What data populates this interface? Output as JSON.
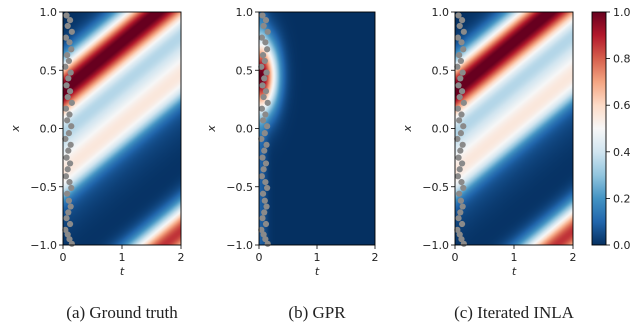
{
  "colors": {
    "colormap": [
      "#053061",
      "#2166ac",
      "#4393c3",
      "#92c5de",
      "#d1e5f0",
      "#f7f7f7",
      "#fddbc7",
      "#f4a582",
      "#d6604d",
      "#b2182b",
      "#67001f"
    ],
    "observation_marker": "#8a8a8a"
  },
  "chart_data": [
    {
      "type": "heatmap",
      "caption": "(a) Ground truth",
      "xlabel": "t",
      "ylabel": "x",
      "xlim": [
        0,
        2
      ],
      "ylim": [
        -1,
        1
      ],
      "xticks": [
        "0",
        "1",
        "2"
      ],
      "yticks": [
        "1.0",
        "0.5",
        "0.0",
        "−0.5",
        "−1.0"
      ],
      "field": "traveling-wave",
      "colormap": "RdBu_r"
    },
    {
      "type": "heatmap",
      "caption": "(b) GPR",
      "xlabel": "t",
      "ylabel": "x",
      "xlim": [
        0,
        2
      ],
      "ylim": [
        -1,
        1
      ],
      "xticks": [
        "0",
        "1",
        "2"
      ],
      "yticks": [
        "1.0",
        "0.5",
        "0.0",
        "−0.5",
        "−1.0"
      ],
      "field": "localized-blob",
      "colormap": "RdBu_r"
    },
    {
      "type": "heatmap",
      "caption": "(c) Iterated INLA",
      "xlabel": "t",
      "ylabel": "x",
      "xlim": [
        0,
        2
      ],
      "ylim": [
        -1,
        1
      ],
      "xticks": [
        "0",
        "1",
        "2"
      ],
      "yticks": [
        "1.0",
        "0.5",
        "0.0",
        "−0.5",
        "−1.0"
      ],
      "field": "traveling-wave",
      "colormap": "RdBu_r"
    }
  ],
  "colorbar": {
    "range": [
      0,
      1
    ],
    "ticks": [
      "1.0",
      "0.8",
      "0.6",
      "0.4",
      "0.2",
      "0.0"
    ]
  },
  "observations": {
    "t": [
      0.06,
      0.12,
      0.08,
      0.15,
      0.05,
      0.11,
      0.14,
      0.07,
      0.1,
      0.04,
      0.13,
      0.09,
      0.06,
      0.12,
      0.08,
      0.15,
      0.05,
      0.11,
      0.07,
      0.14,
      0.1,
      0.04,
      0.13,
      0.09,
      0.06,
      0.12,
      0.08,
      0.05,
      0.11,
      0.14,
      0.07,
      0.1,
      0.13,
      0.09,
      0.06,
      0.12,
      0.04,
      0.08,
      0.11,
      0.15
    ],
    "x": [
      0.97,
      0.93,
      0.88,
      0.83,
      0.78,
      0.74,
      0.68,
      0.63,
      0.58,
      0.53,
      0.48,
      0.43,
      0.37,
      0.32,
      0.27,
      0.22,
      0.17,
      0.12,
      0.07,
      0.02,
      -0.04,
      -0.09,
      -0.14,
      -0.19,
      -0.25,
      -0.3,
      -0.35,
      -0.41,
      -0.46,
      -0.51,
      -0.56,
      -0.62,
      -0.67,
      -0.72,
      -0.77,
      -0.82,
      -0.87,
      -0.91,
      -0.95,
      -0.99
    ]
  }
}
